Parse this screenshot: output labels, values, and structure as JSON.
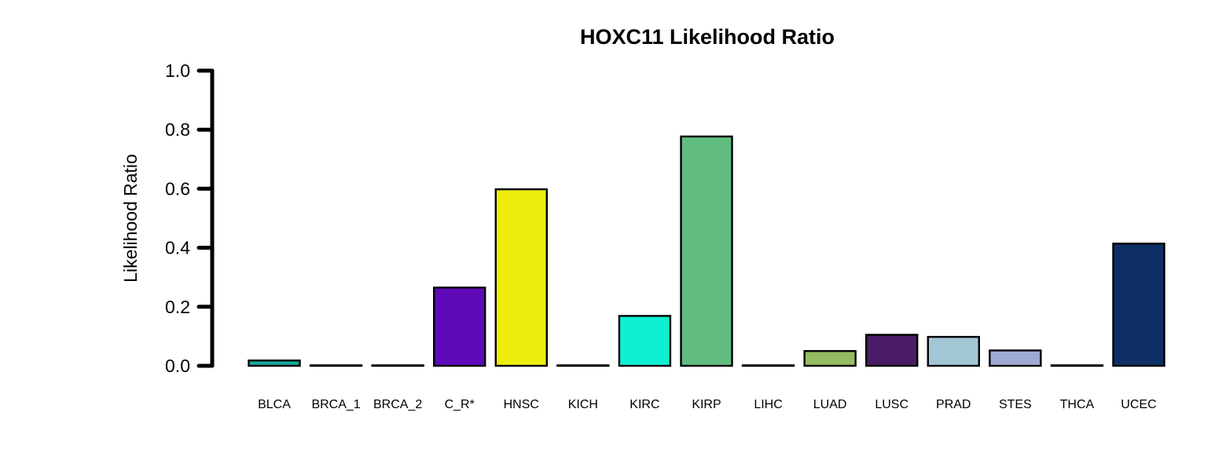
{
  "chart_data": {
    "type": "bar",
    "title": "HOXC11 Likelihood Ratio",
    "xlabel": "",
    "ylabel": "Likelihood Ratio",
    "ylim": [
      0,
      1
    ],
    "yticks": [
      "0.0",
      "0.2",
      "0.4",
      "0.6",
      "0.8",
      "1.0"
    ],
    "grid": false,
    "legend": "none",
    "categories": [
      "BLCA",
      "BRCA_1",
      "BRCA_2",
      "C_R*",
      "HNSC",
      "KICH",
      "KIRC",
      "KIRP",
      "LIHC",
      "LUAD",
      "LUSC",
      "PRAD",
      "STES",
      "THCA",
      "UCEC"
    ],
    "values": [
      0.018,
      0.0,
      0.0,
      0.265,
      0.598,
      0.0,
      0.169,
      0.777,
      0.0,
      0.05,
      0.105,
      0.098,
      0.052,
      0.0,
      0.414
    ],
    "colors": [
      "#1aa59a",
      "#000000",
      "#000000",
      "#5e0ab9",
      "#eded0c",
      "#000000",
      "#0ff0d2",
      "#61bc80",
      "#000000",
      "#95bc60",
      "#4a1b66",
      "#a2c6d4",
      "#9eaad2",
      "#000000",
      "#0d2f65"
    ]
  }
}
